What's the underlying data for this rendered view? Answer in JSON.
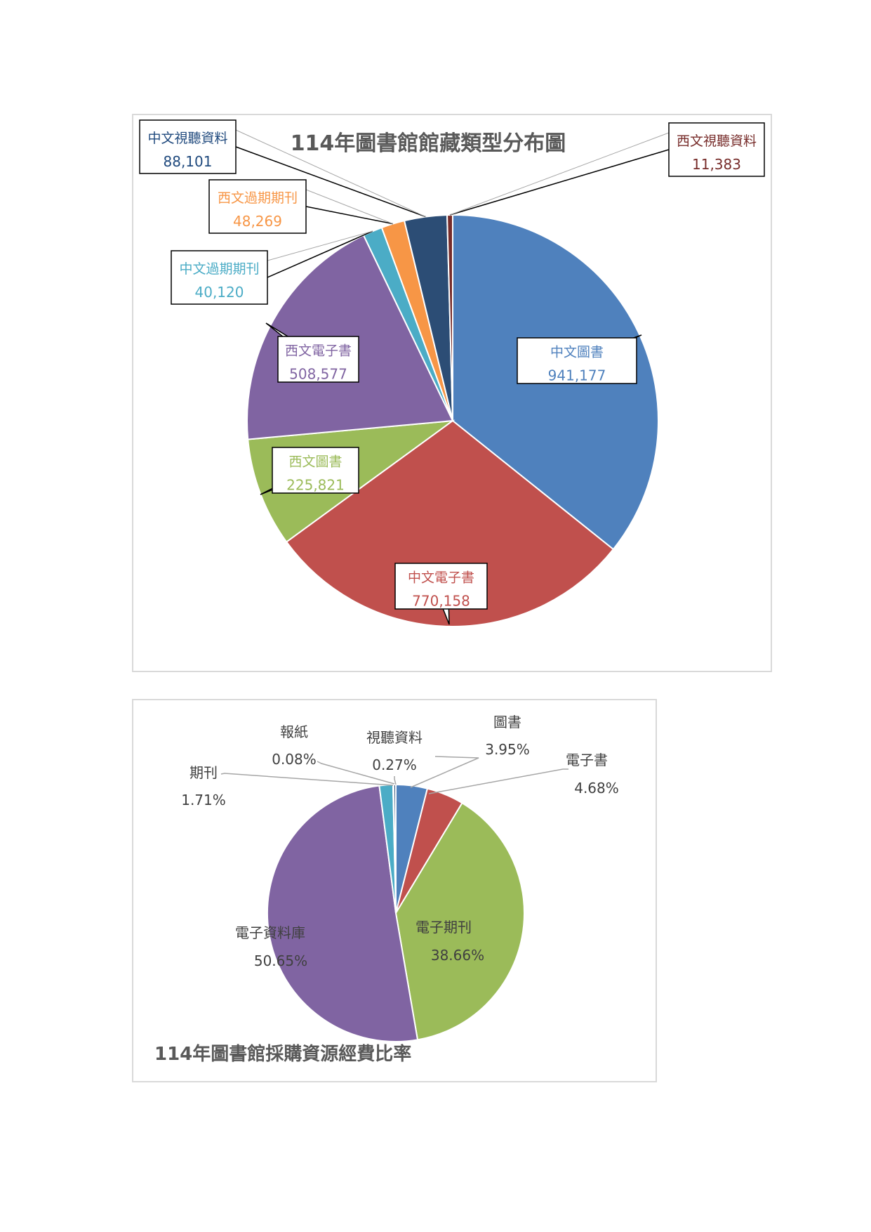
{
  "charts": [
    {
      "chart_data": {
        "type": "pie",
        "title": "114年圖書館館藏類型分布圖",
        "categories": [
          "中文圖書",
          "中文電子書",
          "西文圖書",
          "西文電子書",
          "中文過期期刊",
          "西文過期期刊",
          "中文視聽資料",
          "西文視聽資料"
        ],
        "values": [
          941177,
          770158,
          225821,
          508577,
          40120,
          48269,
          88101,
          11383
        ],
        "value_labels": [
          "941,177",
          "770,158",
          "225,821",
          "508,577",
          "40,120",
          "48,269",
          "88,101",
          "11,383"
        ],
        "colors": [
          "#4F81BD",
          "#C0504D",
          "#9BBB59",
          "#8064A2",
          "#4BACC6",
          "#F79646",
          "#2C4D75",
          "#772C2A"
        ],
        "label_colors": [
          "#4F81BD",
          "#C0504D",
          "#9BBB59",
          "#8064A2",
          "#4BACC6",
          "#F79646",
          "#1F497D",
          "#772C2A"
        ],
        "legend": "none",
        "label_style": "callout"
      }
    },
    {
      "chart_data": {
        "type": "pie",
        "title": "114年圖書館採購資源經費比率",
        "categories": [
          "圖書",
          "電子書",
          "電子期刊",
          "電子資料庫",
          "期刊",
          "報紙",
          "視聽資料"
        ],
        "values": [
          3.95,
          4.68,
          38.66,
          50.65,
          1.71,
          0.08,
          0.27
        ],
        "value_labels": [
          "3.95%",
          "4.68%",
          "38.66%",
          "50.65%",
          "1.71%",
          "0.08%",
          "0.27%"
        ],
        "colors": [
          "#4F81BD",
          "#C0504D",
          "#9BBB59",
          "#8064A2",
          "#4BACC6",
          "#F79646",
          "#2C4D75"
        ],
        "legend": "none",
        "label_style": "leader-line"
      }
    }
  ]
}
